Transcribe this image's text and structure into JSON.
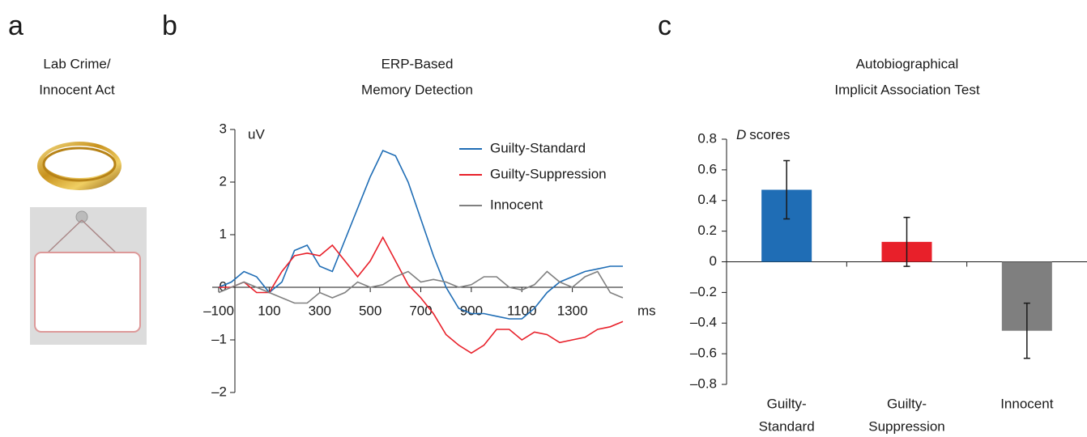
{
  "panel_labels": [
    "a",
    "b",
    "c"
  ],
  "panel_a_title": [
    "Lab Crime/",
    "Innocent Act"
  ],
  "chart_data": [
    {
      "type": "line",
      "title": [
        "ERP-Based",
        "Memory Detection"
      ],
      "y_label": "uV",
      "x_label": "ms",
      "x": [
        -100,
        -50,
        0,
        50,
        100,
        150,
        200,
        250,
        300,
        350,
        400,
        450,
        500,
        550,
        600,
        650,
        700,
        750,
        800,
        850,
        900,
        950,
        1000,
        1050,
        1100,
        1150,
        1200,
        1250,
        1300,
        1350,
        1400,
        1450,
        1500
      ],
      "series": [
        {
          "name": "Guilty-Standard",
          "color": "#1f6db5",
          "values": [
            0,
            0.1,
            0.3,
            0.2,
            -0.1,
            0.1,
            0.7,
            0.8,
            0.4,
            0.3,
            0.9,
            1.5,
            2.1,
            2.6,
            2.5,
            2.0,
            1.3,
            0.6,
            0.0,
            -0.4,
            -0.5,
            -0.5,
            -0.55,
            -0.6,
            -0.6,
            -0.4,
            -0.1,
            0.1,
            0.2,
            0.3,
            0.35,
            0.4,
            0.4
          ]
        },
        {
          "name": "Guilty-Suppression",
          "color": "#e8202a",
          "values": [
            0,
            0,
            0.1,
            -0.1,
            -0.1,
            0.3,
            0.6,
            0.65,
            0.6,
            0.8,
            0.5,
            0.2,
            0.5,
            0.95,
            0.5,
            0.05,
            -0.2,
            -0.5,
            -0.9,
            -1.1,
            -1.25,
            -1.1,
            -0.8,
            -0.8,
            -1.0,
            -0.85,
            -0.9,
            -1.05,
            -1.0,
            -0.95,
            -0.8,
            -0.75,
            -0.65
          ]
        },
        {
          "name": "Innocent",
          "color": "#808080",
          "values": [
            -0.1,
            0,
            0.1,
            0,
            -0.1,
            -0.2,
            -0.3,
            -0.3,
            -0.1,
            -0.2,
            -0.1,
            0.1,
            0,
            0.05,
            0.2,
            0.3,
            0.1,
            0.15,
            0.1,
            0,
            0.05,
            0.2,
            0.2,
            0,
            -0.05,
            0.05,
            0.3,
            0.1,
            0.0,
            0.2,
            0.3,
            -0.1,
            -0.2
          ]
        }
      ],
      "xlim": [
        -100,
        1500
      ],
      "xticks": [
        {
          "value": -100,
          "label": "–100"
        },
        100,
        300,
        500,
        700,
        900,
        1100,
        1300
      ],
      "ylim": [
        -2,
        3
      ],
      "yticks": [
        {
          "value": -2,
          "label": "–2"
        },
        {
          "value": -1,
          "label": "–1"
        },
        0,
        1,
        2,
        3
      ]
    },
    {
      "type": "bar",
      "title": [
        "Autobiographical",
        "Implicit Association Test"
      ],
      "y_label": {
        "italic": "D",
        "text": "scores"
      },
      "categories": [
        [
          "Guilty-",
          "Standard"
        ],
        [
          "Guilty-",
          "Suppression"
        ],
        [
          "Innocent"
        ]
      ],
      "values": [
        0.47,
        0.13,
        -0.45
      ],
      "errors": [
        0.19,
        0.16,
        0.18
      ],
      "colors": [
        "#1f6db5",
        "#e8202a",
        "#7f7f7f"
      ],
      "ylim": [
        -0.8,
        0.8
      ],
      "yticks": [
        {
          "value": -0.8,
          "label": "–0.8"
        },
        {
          "value": -0.6,
          "label": "–0.6"
        },
        {
          "value": -0.4,
          "label": "–0.4"
        },
        {
          "value": -0.2,
          "label": "–0.2"
        },
        0,
        0.2,
        0.4,
        0.6,
        0.8
      ]
    }
  ]
}
